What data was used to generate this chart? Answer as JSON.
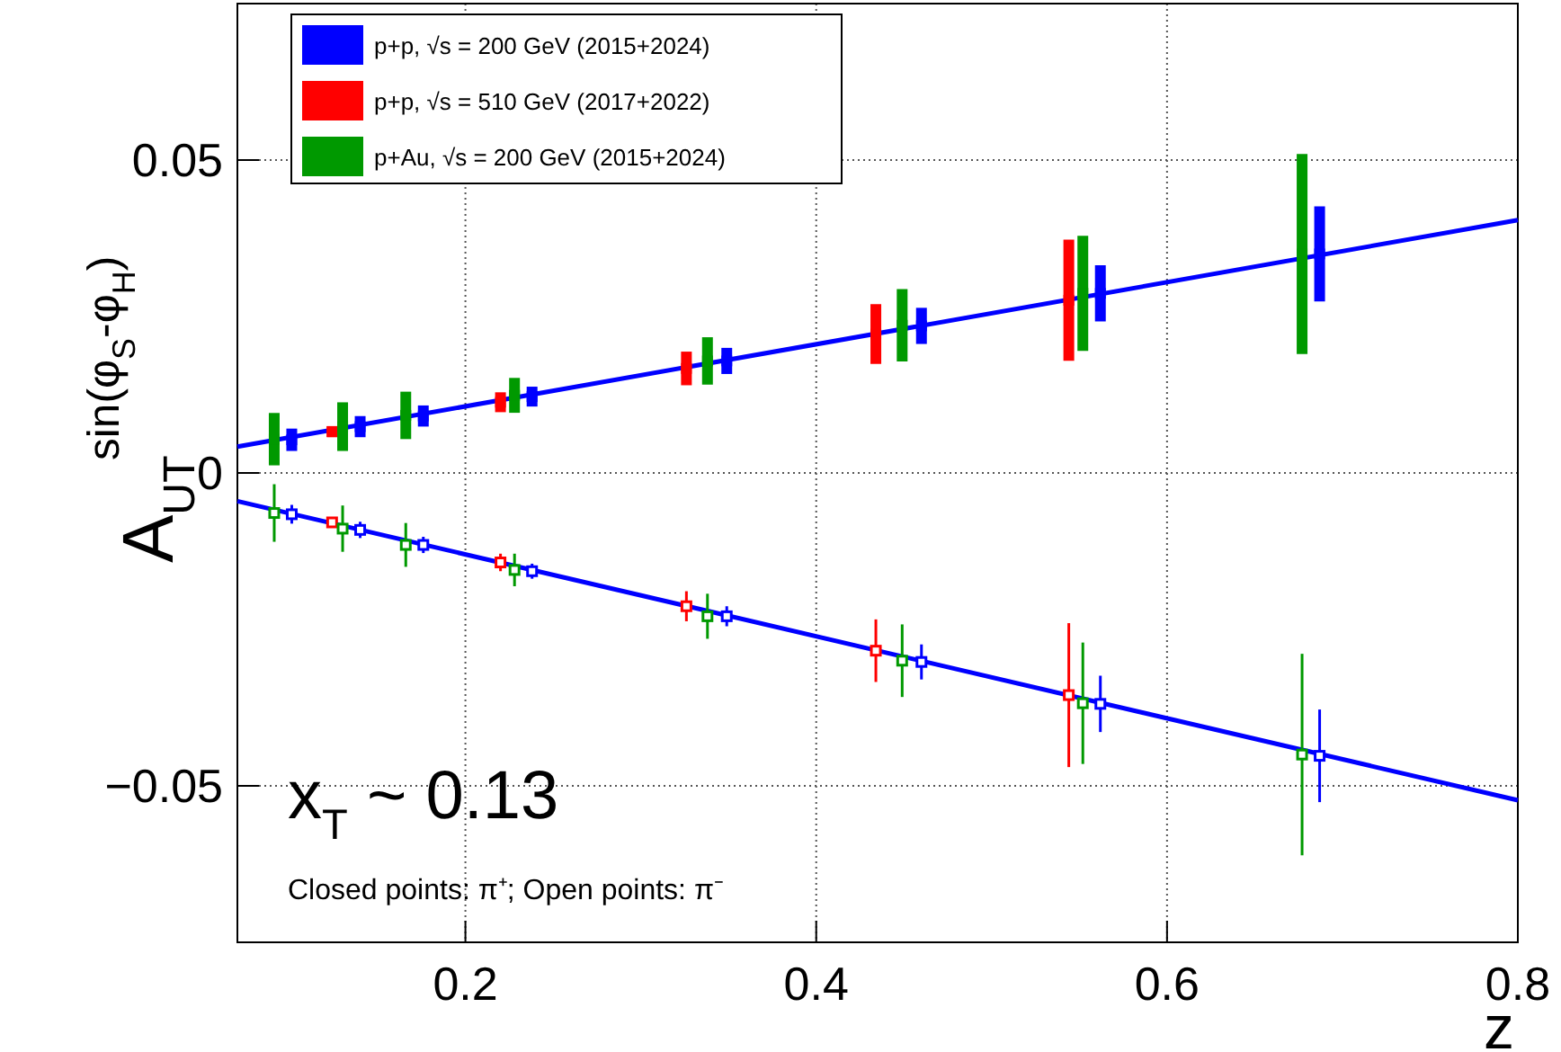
{
  "chart_data": {
    "type": "scatter",
    "xlabel": "z",
    "ylabel": "A$_{UT}$$^{sin(φ}$$_{S}$$^{-φ}$$_{H}$$^{)}$",
    "annotations": [
      "x$_{T}$ ~ 0.13",
      "Closed points: π⁺; Open points: π⁻"
    ],
    "xlim": [
      0.07,
      0.8
    ],
    "ylim": [
      -0.075,
      0.075
    ],
    "xticks": [
      0.2,
      0.4,
      0.6,
      0.8
    ],
    "yticks": [
      -0.05,
      0,
      0.05
    ],
    "grid": true,
    "legend": "top left",
    "series": [
      {
        "type": "line",
        "color": "#0000ff",
        "x": [
          0.07,
          0.8
        ],
        "values": [
          0.0042,
          0.0404
        ]
      },
      {
        "type": "line",
        "color": "#0000ff",
        "x": [
          0.07,
          0.8
        ],
        "values": [
          -0.0045,
          -0.0523
        ]
      },
      {
        "name": "p+p, √s = 200 GeV (2015+2024)",
        "color": "#0000ff",
        "marker": "square",
        "x": [
          0.101,
          0.14,
          0.176,
          0.238,
          0.349,
          0.46,
          0.562,
          0.687
        ],
        "values": [
          0.0053,
          0.0074,
          0.0091,
          0.0122,
          0.0179,
          0.0235,
          0.0287,
          0.035
        ],
        "errors": [
          0.0015,
          0.0014,
          0.0014,
          0.0013,
          0.0018,
          0.0026,
          0.0042,
          0.0073
        ]
      },
      {
        "name": "p+p, √s = 510 GeV (2017+2022)",
        "color": "#ff0000",
        "marker": "square",
        "x": [
          0.124,
          0.22,
          0.326,
          0.434,
          0.544
        ],
        "values": [
          0.0066,
          0.0113,
          0.0167,
          0.0222,
          0.0276
        ],
        "errors": [
          0.0006,
          0.0013,
          0.0024,
          0.0045,
          0.0094
        ]
      },
      {
        "name": "p+Au, √s = 200 GeV (2015+2024)",
        "color": "#009900",
        "marker": "square",
        "x": [
          0.091,
          0.13,
          0.166,
          0.228,
          0.338,
          0.449,
          0.552,
          0.677
        ],
        "values": [
          0.0054,
          0.0074,
          0.0092,
          0.0124,
          0.0179,
          0.0236,
          0.0287,
          0.035
        ],
        "errors": [
          0.0039,
          0.0036,
          0.0035,
          0.0025,
          0.0035,
          0.0055,
          0.0089,
          0.0157
        ]
      },
      {
        "color": "#0000ff",
        "marker": "square",
        "x": [
          0.101,
          0.14,
          0.176,
          0.238,
          0.349,
          0.46,
          0.562,
          0.687
        ],
        "values": [
          -0.0066,
          -0.0091,
          -0.0115,
          -0.0157,
          -0.0229,
          -0.0302,
          -0.0369,
          -0.0452
        ],
        "errors": [
          0.0015,
          0.0013,
          0.0013,
          0.0012,
          0.0016,
          0.0028,
          0.0045,
          0.0074
        ]
      },
      {
        "color": "#ff0000",
        "marker": "square",
        "x": [
          0.124,
          0.22,
          0.326,
          0.434,
          0.544
        ],
        "values": [
          -0.0079,
          -0.0143,
          -0.0213,
          -0.0284,
          -0.0355
        ],
        "errors": [
          0.0007,
          0.0014,
          0.0024,
          0.005,
          0.0115
        ]
      },
      {
        "color": "#009900",
        "marker": "square",
        "x": [
          0.091,
          0.13,
          0.166,
          0.228,
          0.338,
          0.449,
          0.552,
          0.677
        ],
        "values": [
          -0.0064,
          -0.0089,
          -0.0115,
          -0.0155,
          -0.0229,
          -0.03,
          -0.0368,
          -0.045
        ],
        "errors": [
          0.0046,
          0.0037,
          0.0035,
          0.0026,
          0.0036,
          0.0058,
          0.0097,
          0.0161
        ]
      }
    ]
  }
}
